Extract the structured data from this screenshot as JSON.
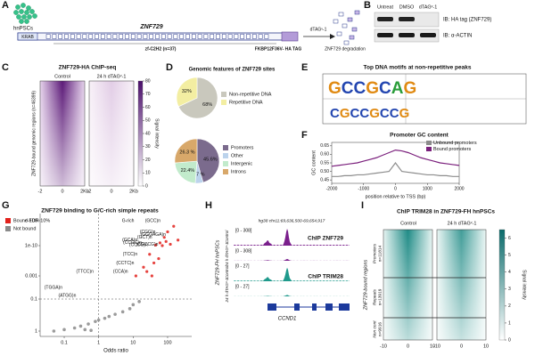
{
  "panels": {
    "A": {
      "label": "A",
      "cells": "hnPSCs",
      "protein": "ZNF729",
      "domain": "KRAB",
      "zf": "zf-C2H2 (n=37)",
      "tag": "FKBP12F36V- HA TAG",
      "treatment": "dTAGᵛ-1",
      "outcome": "ZNF729 degradation"
    },
    "B": {
      "label": "B",
      "lanes": [
        "Untreat",
        "DMSO",
        "dTAGᵛ-1"
      ],
      "blots": [
        "IB: HA tag (ZNF729)",
        "IB: α-ACTIN"
      ]
    },
    "C": {
      "label": "C",
      "title": "ZNF729-HA ChIP-seq",
      "columns": [
        "Control",
        "24 h dTAGᵛ-1"
      ],
      "ylabel": "ZNF729-bound genomic regions (n=46399)",
      "xticks": [
        "-2",
        "0",
        "2Kb"
      ],
      "colorbar_label": "Signal intensity",
      "colorbar_lim": [
        0,
        80
      ],
      "colorbar_ticks": [
        0,
        10,
        20,
        30,
        40,
        50,
        60,
        70,
        80
      ]
    },
    "D": {
      "label": "D",
      "title": "Genomic features of ZNF729 sites",
      "pies": [
        {
          "type": "pie",
          "names": [
            "Non-repetitive DNA",
            "Repetitive DNA"
          ],
          "values": [
            68,
            32
          ],
          "value_labels": [
            "68%",
            "32%"
          ],
          "colors": [
            "#c9c8bd",
            "#f3eea2"
          ]
        },
        {
          "type": "pie",
          "names": [
            "Promoters",
            "Other",
            "Intergenic",
            "Introns"
          ],
          "values": [
            45.6,
            5.7,
            22.4,
            26.3
          ],
          "value_labels": [
            "45.6%",
            "5.7 %",
            "22.4%",
            "26.3 %"
          ],
          "colors": [
            "#7b6b8d",
            "#bcd3ec",
            "#c2ebcc",
            "#d8a86a"
          ]
        }
      ]
    },
    "E": {
      "label": "E",
      "title": "Top DNA motifs at non-repetitive peaks",
      "motifs": [
        "GCCGCAG",
        "CGCCGCCG"
      ]
    },
    "F": {
      "label": "F",
      "type": "line",
      "title": "Promoter GC content",
      "ylabel": "GC content",
      "xlabel": "position relative to TSS (bp)",
      "x": [
        -2000,
        -1800,
        -1600,
        -1400,
        -1200,
        -1000,
        -800,
        -600,
        -400,
        -200,
        0,
        200,
        400,
        600,
        800,
        1000,
        1200,
        1400,
        1600,
        1800,
        2000
      ],
      "series": [
        {
          "name": "Unbound promoters",
          "color": "#8c8c8c",
          "values": [
            0.47,
            0.47,
            0.475,
            0.475,
            0.48,
            0.48,
            0.485,
            0.49,
            0.495,
            0.5,
            0.55,
            0.5,
            0.495,
            0.49,
            0.485,
            0.48,
            0.48,
            0.475,
            0.475,
            0.47,
            0.47
          ]
        },
        {
          "name": "Bound promoters",
          "color": "#7a1f7c",
          "values": [
            0.53,
            0.535,
            0.54,
            0.545,
            0.55,
            0.56,
            0.57,
            0.58,
            0.595,
            0.61,
            0.625,
            0.62,
            0.61,
            0.595,
            0.58,
            0.57,
            0.56,
            0.55,
            0.545,
            0.54,
            0.535
          ]
        }
      ],
      "xlim": [
        -2000,
        2000
      ],
      "xticks": [
        -2000,
        -1000,
        0,
        1000,
        2000
      ],
      "ylim": [
        0.43,
        0.67
      ],
      "yticks": [
        0.45,
        {
          "value": 0.5,
          "label": "0.50"
        },
        0.55,
        {
          "value": 0.6,
          "label": "0.60"
        },
        0.65
      ]
    },
    "G": {
      "label": "G",
      "type": "scatter",
      "title": "ZNF729 binding to G/C-rich simple repeats",
      "xlabel": "Odds ratio",
      "log_x": true,
      "log_y": true,
      "xlim": [
        0.02,
        500
      ],
      "xticks": [
        0.1,
        1,
        10,
        100
      ],
      "yticks": [
        {
          "value": 1e-100,
          "label": "e-100"
        },
        {
          "value": 1e-10,
          "label": "1e-10"
        },
        0.001,
        0.1,
        1
      ],
      "series": [
        {
          "name": "Bound FDR 10%",
          "color": "#e2211c",
          "x": [
            12,
            20,
            30,
            45,
            60,
            80,
            100,
            150,
            25,
            40,
            70,
            120,
            200,
            35,
            55,
            90
          ],
          "values": [
            0.001,
            1e-05,
            1e-08,
            1e-12,
            1e-20,
            1e-40,
            1e-60,
            1e-80,
            0.0001,
            1e-06,
            1e-10,
            1e-15,
            1e-30,
            0.001,
            1e-07,
            1e-25
          ]
        },
        {
          "name": "Not bound",
          "color": "#8a8a8a",
          "x": [
            0.05,
            0.1,
            0.2,
            0.3,
            0.5,
            0.8,
            1,
            1.5,
            2,
            3,
            5,
            8,
            10,
            15,
            0.4,
            0.6
          ],
          "values": [
            1,
            0.9,
            0.8,
            0.7,
            0.6,
            0.5,
            0.45,
            0.4,
            0.35,
            0.3,
            0.25,
            0.2,
            0.15,
            0.12,
            0.9,
            0.95
          ]
        }
      ],
      "annotations": [
        {
          "text": "G-rich",
          "x": 12,
          "y": 1e-100
        },
        {
          "text": "(GCC)n",
          "x": 70,
          "y": 1e-100
        },
        {
          "text": "(GGGAGA)n",
          "x": 100,
          "y": 1e-50
        },
        {
          "text": "(CGG)n",
          "x": 50,
          "y": 1e-60
        },
        {
          "text": "(GCT)n",
          "x": 40,
          "y": 1e-40
        },
        {
          "text": "(GCA)n",
          "x": 15,
          "y": 1e-30
        },
        {
          "text": "(CCGC)n",
          "x": 20,
          "y": 1e-20
        },
        {
          "text": "(CGCCG)n",
          "x": 60,
          "y": 1e-15
        },
        {
          "text": "(CCCG)n",
          "x": 30,
          "y": 1e-12
        },
        {
          "text": "(TCC)n",
          "x": 15,
          "y": 1e-08
        },
        {
          "text": "(CCTC)n",
          "x": 12,
          "y": 1e-06
        },
        {
          "text": "(CCA)n",
          "x": 8,
          "y": 0.0001
        },
        {
          "text": "(TTCC)n",
          "x": 0.8,
          "y": 0.0001
        },
        {
          "text": "(TGGA)n",
          "x": 0.1,
          "y": 0.01
        },
        {
          "text": "(ATGG)n",
          "x": 0.25,
          "y": 0.05
        }
      ]
    },
    "H": {
      "label": "H",
      "locus": "hg38 chr11:69,636,500-69,654,917",
      "cells": "ZNF729-FH hnPSCs",
      "tracks": [
        {
          "condition": "Control",
          "range": "[0 - 308]",
          "name": "ChIP ZNF729"
        },
        {
          "condition": "24 h dTAGᵛ-1",
          "range": "[0 - 308]"
        },
        {
          "condition": "Control",
          "range": "[0 - 27]",
          "name": "ChIP TRIM28"
        },
        {
          "condition": "24 h dTAGᵛ-1",
          "range": "[0 - 27]"
        }
      ],
      "gene": "CCND1"
    },
    "I": {
      "label": "I",
      "title": "ChIP TRIM28 in ZNF729-FH hnPSCs",
      "columns": [
        "Control",
        "24 h dTAGᵛ-1"
      ],
      "ylabel": "ZNF729-bound regions",
      "groups": [
        {
          "name": "Promoters",
          "n": "n=11814"
        },
        {
          "name": "Repeats",
          "n": "n=13919"
        },
        {
          "name": "Non cont",
          "n": "n=9916"
        }
      ],
      "xticks": [
        "-10",
        "0",
        "10"
      ],
      "colorbar_label": "Signal intensity",
      "colorbar_lim": [
        0,
        6.5
      ],
      "colorbar_ticks": [
        0,
        1,
        2,
        3,
        4,
        5,
        6
      ]
    }
  }
}
